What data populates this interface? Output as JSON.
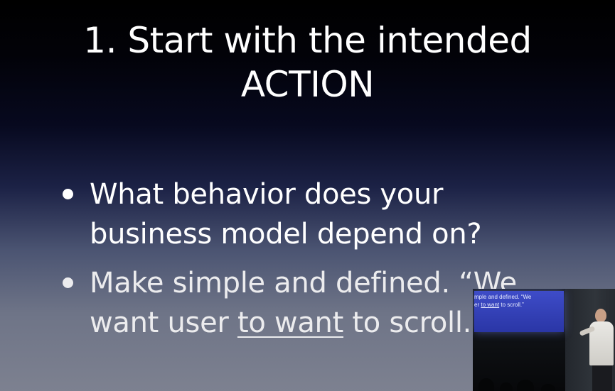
{
  "slide": {
    "title_line1": "1. Start with the intended",
    "title_line2": "ACTION",
    "bullets": [
      {
        "lines": [
          "What behavior does your",
          "business model depend on?"
        ]
      },
      {
        "line1": "Make simple and defined. “We",
        "line2_start": "want user ",
        "line2_underlined": "to want",
        "line2_end": " to scroll.”"
      }
    ]
  },
  "video_inset": {
    "screen_line1": "mple and defined. “We",
    "screen_line2_start": "er ",
    "screen_line2_underlined": "to want",
    "screen_line2_end": " to scroll.”"
  },
  "colors": {
    "background_top": "#000000",
    "background_bottom": "#7d8190",
    "text": "#ffffff",
    "inset_screen": "#3e4cc8"
  }
}
